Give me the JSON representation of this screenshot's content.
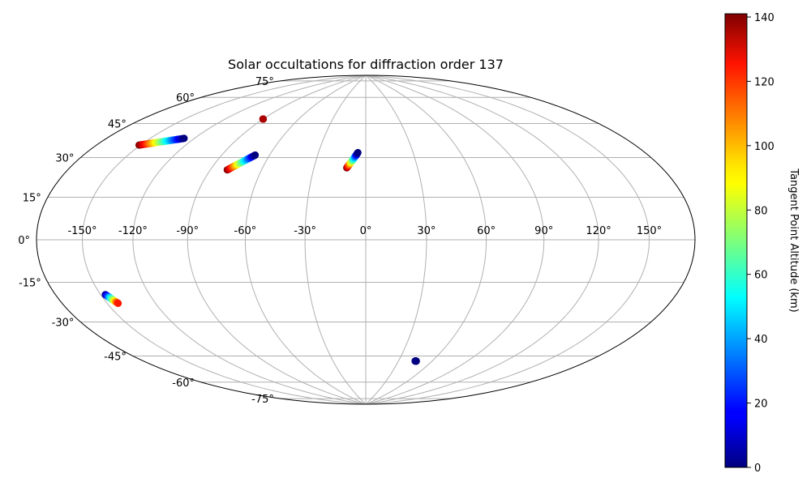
{
  "chart_data": {
    "type": "scatter",
    "projection": "hammer",
    "title": "Solar occultations for diffraction order 137",
    "grid": true,
    "longitude_ticks": [
      -150,
      -120,
      -90,
      -60,
      -30,
      0,
      30,
      60,
      90,
      120,
      150
    ],
    "longitude_tick_labels": [
      "-150°",
      "-120°",
      "-90°",
      "-60°",
      "-30°",
      "0°",
      "30°",
      "60°",
      "90°",
      "120°",
      "150°"
    ],
    "latitude_ticks": [
      -75,
      -60,
      -45,
      -30,
      -15,
      0,
      15,
      30,
      45,
      60,
      75
    ],
    "latitude_tick_labels": [
      "-75°",
      "-60°",
      "-45°",
      "-30°",
      "-15°",
      "0°",
      "15°",
      "30°",
      "45°",
      "60°",
      "75°"
    ],
    "colorbar": {
      "label": "Tangent Point Altitude (km)",
      "range": [
        0,
        141
      ],
      "ticks": [
        0,
        20,
        40,
        60,
        80,
        100,
        120,
        140
      ],
      "tick_labels": [
        "0",
        "20",
        "40",
        "60",
        "80",
        "100",
        "120",
        "140"
      ],
      "colormap": "jet"
    },
    "tracks": [
      {
        "lon_start": -151,
        "lat_start": 39,
        "alt_start": 141,
        "lon_end": -127,
        "lat_end": 45,
        "alt_end": 0
      },
      {
        "lon_start": -90,
        "lat_start": 59,
        "alt_start": 138,
        "lon_end": -90,
        "lat_end": 59,
        "alt_end": 135
      },
      {
        "lon_start": -80,
        "lat_start": 33,
        "alt_start": 141,
        "lon_end": -69,
        "lat_end": 41,
        "alt_end": 0
      },
      {
        "lon_start": -11,
        "lat_start": 36,
        "alt_start": 141,
        "lon_end": -5,
        "lat_end": 44,
        "alt_end": 0
      },
      {
        "lon_start": -147,
        "lat_start": -22,
        "alt_start": 0,
        "lon_end": -143,
        "lat_end": -26,
        "alt_end": 120
      },
      {
        "lon_start": 45,
        "lat_start": -62,
        "alt_start": 5,
        "lon_end": 46,
        "lat_end": -62,
        "alt_end": 0
      }
    ]
  }
}
